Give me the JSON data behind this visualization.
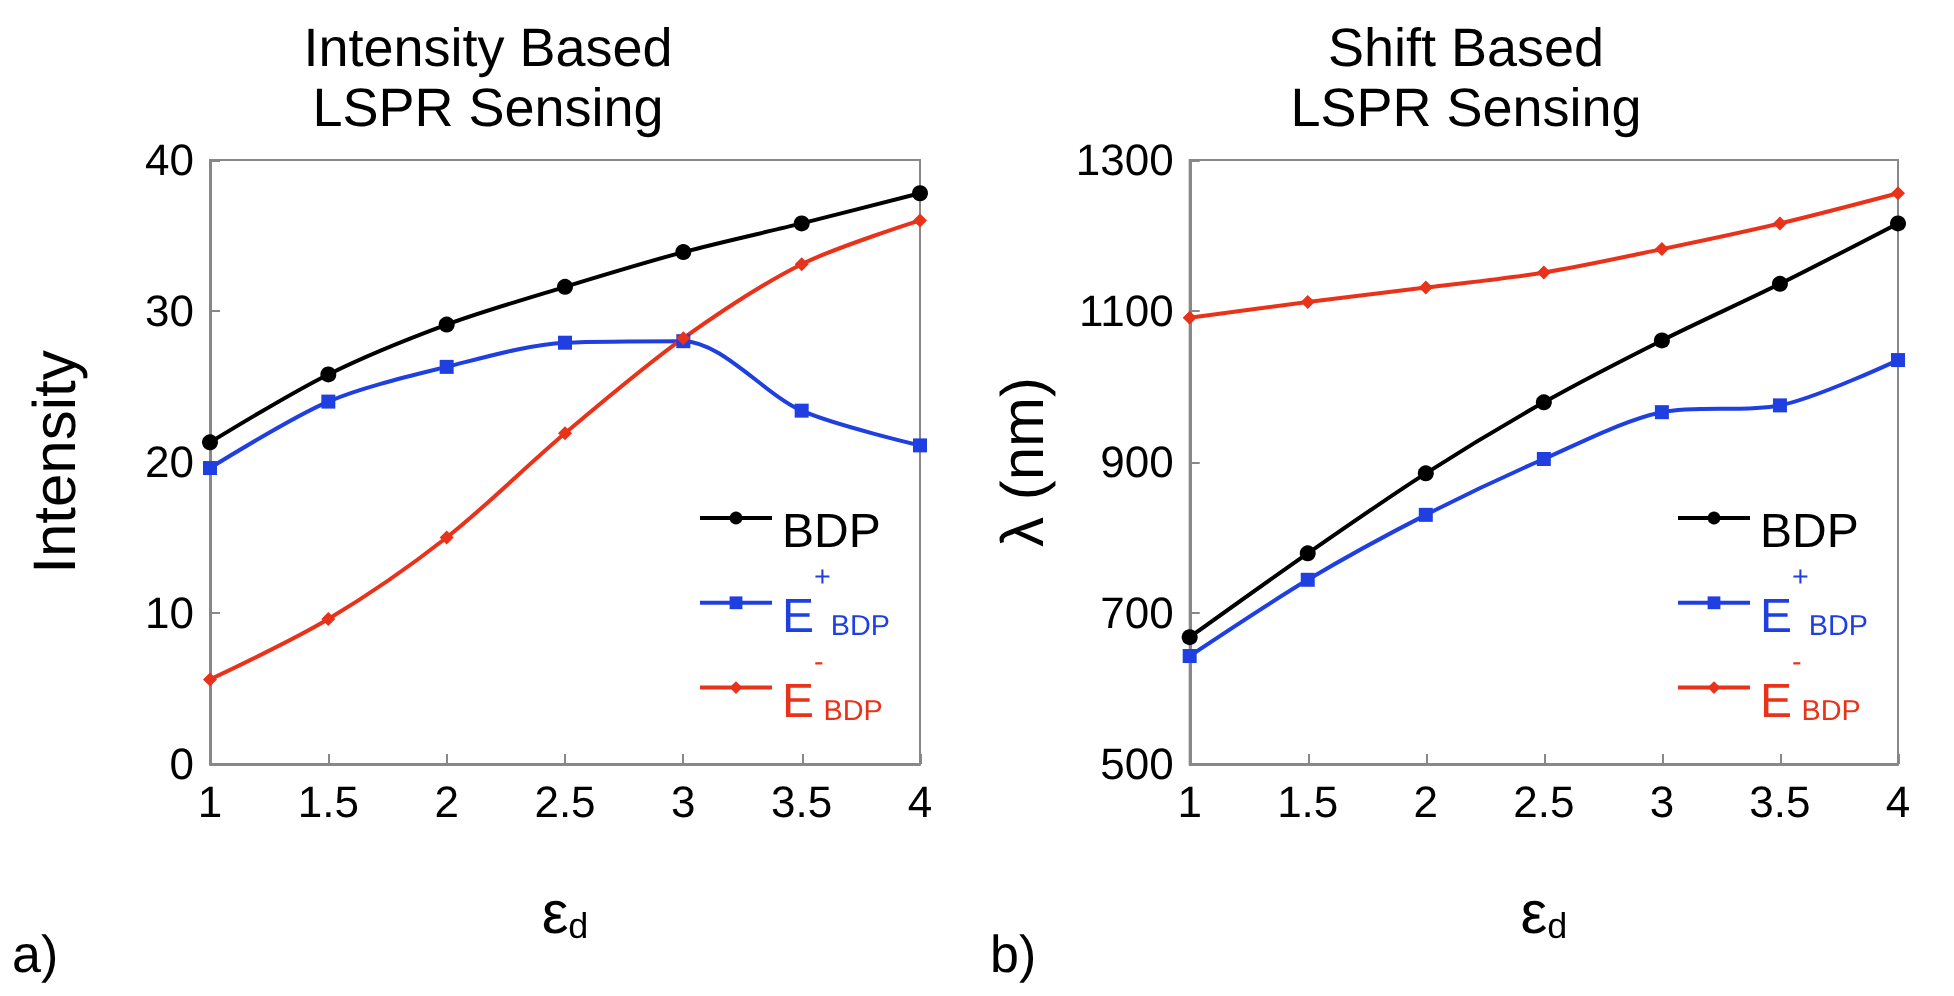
{
  "chart_data": [
    {
      "type": "line",
      "title": "Intensity Based\nLSPR Sensing",
      "xlabel": "ε$_{d}$",
      "ylabel": "Intensity",
      "annotations": [
        "a)"
      ],
      "x": [
        1,
        1.5,
        2,
        2.5,
        3,
        3.5,
        4
      ],
      "xlim": [
        1,
        4
      ],
      "xticks": [
        1,
        1.5,
        2,
        2.5,
        3,
        3.5,
        4
      ],
      "ylim": [
        0,
        40
      ],
      "yticks": [
        0,
        10,
        20,
        30,
        40
      ],
      "grid": false,
      "legend": "bottom right",
      "series": [
        {
          "name": "BDP",
          "color": "#000000",
          "marker": "circle",
          "values": [
            21.3,
            25.8,
            29.1,
            31.6,
            33.9,
            35.8,
            37.8
          ]
        },
        {
          "name": "E$^{+}$$_{BDP}$",
          "color": "#1f3fe0",
          "marker": "square",
          "values": [
            19.6,
            24.0,
            26.3,
            27.9,
            28.0,
            23.4,
            21.1
          ]
        },
        {
          "name": "E$^{-}$$_{BDP}$",
          "color": "#e8321a",
          "marker": "diamond",
          "values": [
            5.6,
            9.6,
            15.0,
            21.9,
            28.2,
            33.1,
            36.0
          ]
        }
      ]
    },
    {
      "type": "line",
      "title": "Shift Based\nLSPR Sensing",
      "xlabel": "ε$_{d}$",
      "ylabel": "λ (nm)",
      "annotations": [
        "b)"
      ],
      "x": [
        1,
        1.5,
        2,
        2.5,
        3,
        3.5,
        4
      ],
      "xlim": [
        1,
        4
      ],
      "xticks": [
        1,
        1.5,
        2,
        2.5,
        3,
        3.5,
        4
      ],
      "ylim": [
        500,
        1300
      ],
      "yticks": [
        500,
        700,
        900,
        1100,
        1300
      ],
      "grid": false,
      "legend": "bottom right",
      "series": [
        {
          "name": "BDP",
          "color": "#000000",
          "marker": "circle",
          "values": [
            668,
            779,
            885,
            979,
            1061,
            1136,
            1216
          ]
        },
        {
          "name": "E$^{+}$$_{BDP}$",
          "color": "#1f3fe0",
          "marker": "square",
          "values": [
            643,
            744,
            830,
            904,
            966,
            975,
            1035
          ]
        },
        {
          "name": "E$^{-}$$_{BDP}$",
          "color": "#e8321a",
          "marker": "diamond",
          "values": [
            1091,
            1112,
            1131,
            1151,
            1182,
            1216,
            1256
          ]
        }
      ]
    }
  ]
}
